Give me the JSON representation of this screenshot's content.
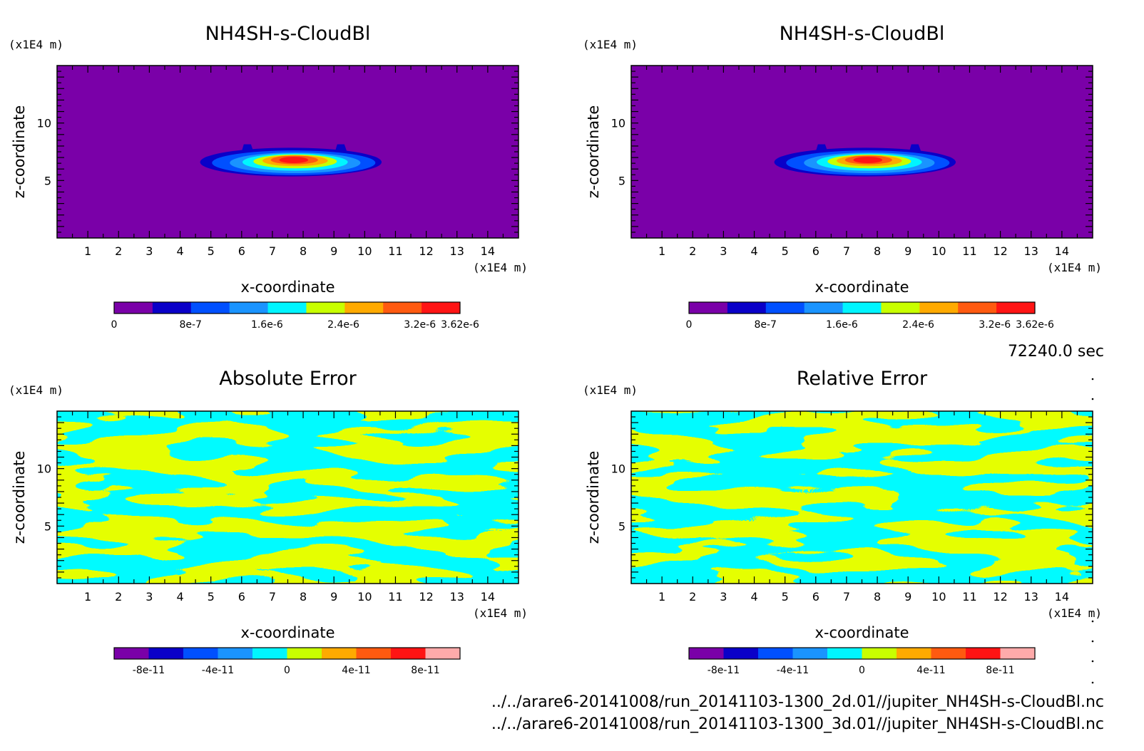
{
  "chart_data": [
    {
      "type": "heatmap",
      "title": "NH4SH-s-CloudBl",
      "xlabel": "x-coordinate",
      "ylabel": "z-coordinate",
      "x_unit": "(x1E4 m)",
      "y_unit": "(x1E4 m)",
      "xlim": [
        0,
        15
      ],
      "ylim": [
        0,
        15
      ],
      "xticks": [
        "1",
        "2",
        "3",
        "4",
        "5",
        "6",
        "7",
        "8",
        "9",
        "10",
        "11",
        "12",
        "13",
        "14"
      ],
      "yticks": [
        "5",
        "10"
      ],
      "feature": {
        "kind": "cloud_blob",
        "x_center": 7.6,
        "z_center": 6.6,
        "x_range": [
          4.7,
          10.6
        ],
        "z_range": [
          5.5,
          8.0
        ]
      },
      "colorbar": {
        "colors": [
          "#7a00a8",
          "#0a00c8",
          "#0050ff",
          "#1a94ff",
          "#00f5ff",
          "#c8ff00",
          "#ffaa00",
          "#ff5a10",
          "#ff1414"
        ],
        "range": [
          0,
          3.62e-06
        ],
        "labels": [
          {
            "text": "0",
            "value": 0
          },
          {
            "text": "8e-7",
            "value": 8e-07
          },
          {
            "text": "1.6e-6",
            "value": 1.6e-06
          },
          {
            "text": "2.4e-6",
            "value": 2.4e-06
          },
          {
            "text": "3.2e-6",
            "value": 3.2e-06
          },
          {
            "text": "3.62e-6",
            "value": 3.62e-06
          }
        ]
      }
    },
    {
      "type": "heatmap",
      "title": "NH4SH-s-CloudBl",
      "xlabel": "x-coordinate",
      "ylabel": "z-coordinate",
      "x_unit": "(x1E4 m)",
      "y_unit": "(x1E4 m)",
      "xlim": [
        0,
        15
      ],
      "ylim": [
        0,
        15
      ],
      "xticks": [
        "1",
        "2",
        "3",
        "4",
        "5",
        "6",
        "7",
        "8",
        "9",
        "10",
        "11",
        "12",
        "13",
        "14"
      ],
      "yticks": [
        "5",
        "10"
      ],
      "feature": {
        "kind": "cloud_blob",
        "x_center": 7.6,
        "z_center": 6.6,
        "x_range": [
          4.7,
          10.6
        ],
        "z_range": [
          5.5,
          8.0
        ]
      },
      "colorbar": {
        "colors": [
          "#7a00a8",
          "#0a00c8",
          "#0050ff",
          "#1a94ff",
          "#00f5ff",
          "#c8ff00",
          "#ffaa00",
          "#ff5a10",
          "#ff1414"
        ],
        "range": [
          0,
          3.62e-06
        ],
        "labels": [
          {
            "text": "0",
            "value": 0
          },
          {
            "text": "8e-7",
            "value": 8e-07
          },
          {
            "text": "1.6e-6",
            "value": 1.6e-06
          },
          {
            "text": "2.4e-6",
            "value": 2.4e-06
          },
          {
            "text": "3.2e-6",
            "value": 3.2e-06
          },
          {
            "text": "3.62e-6",
            "value": 3.62e-06
          }
        ]
      }
    },
    {
      "type": "heatmap",
      "title": "Absolute Error",
      "xlabel": "x-coordinate",
      "ylabel": "z-coordinate",
      "x_unit": "(x1E4 m)",
      "y_unit": "(x1E4 m)",
      "xlim": [
        0,
        15
      ],
      "ylim": [
        0,
        15
      ],
      "xticks": [
        "1",
        "2",
        "3",
        "4",
        "5",
        "6",
        "7",
        "8",
        "9",
        "10",
        "11",
        "12",
        "13",
        "14"
      ],
      "yticks": [
        "5",
        "10"
      ],
      "feature": {
        "kind": "noise_two_level",
        "levels": [
          "#c8ff00",
          "#00f5ff"
        ]
      },
      "colorbar": {
        "colors": [
          "#7a00a8",
          "#0a00c8",
          "#0050ff",
          "#1a94ff",
          "#00f5ff",
          "#c8ff00",
          "#ffaa00",
          "#ff5a10",
          "#ff1414",
          "#ffaaaa"
        ],
        "range": [
          -1e-10,
          1e-10
        ],
        "labels": [
          {
            "text": "-8e-11",
            "value": -8e-11
          },
          {
            "text": "-4e-11",
            "value": -4e-11
          },
          {
            "text": "0",
            "value": 0
          },
          {
            "text": "4e-11",
            "value": 4e-11
          },
          {
            "text": "8e-11",
            "value": 8e-11
          }
        ]
      }
    },
    {
      "type": "heatmap",
      "title": "Relative Error",
      "xlabel": "x-coordinate",
      "ylabel": "z-coordinate",
      "x_unit": "(x1E4 m)",
      "y_unit": "(x1E4 m)",
      "xlim": [
        0,
        15
      ],
      "ylim": [
        0,
        15
      ],
      "xticks": [
        "1",
        "2",
        "3",
        "4",
        "5",
        "6",
        "7",
        "8",
        "9",
        "10",
        "11",
        "12",
        "13",
        "14"
      ],
      "yticks": [
        "5",
        "10"
      ],
      "feature": {
        "kind": "noise_two_level",
        "levels": [
          "#c8ff00",
          "#00f5ff"
        ]
      },
      "colorbar": {
        "colors": [
          "#7a00a8",
          "#0a00c8",
          "#0050ff",
          "#1a94ff",
          "#00f5ff",
          "#c8ff00",
          "#ffaa00",
          "#ff5a10",
          "#ff1414",
          "#ffaaaa"
        ],
        "range": [
          -1e-10,
          1e-10
        ],
        "labels": [
          {
            "text": "-8e-11",
            "value": -8e-11
          },
          {
            "text": "-4e-11",
            "value": -4e-11
          },
          {
            "text": "0",
            "value": 0
          },
          {
            "text": "4e-11",
            "value": 4e-11
          },
          {
            "text": "8e-11",
            "value": 8e-11
          }
        ]
      }
    }
  ],
  "time_label": "72240.0 sec",
  "files": [
    "../../arare6-20141008/run_20141103-1300_2d.01//jupiter_NH4SH-s-CloudBl.nc",
    "../../arare6-20141008/run_20141103-1300_3d.01//jupiter_NH4SH-s-CloudBl.nc"
  ]
}
